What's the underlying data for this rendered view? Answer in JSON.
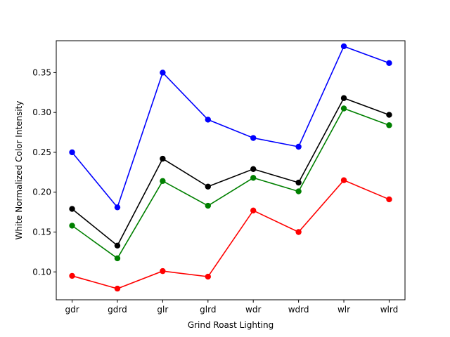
{
  "chart_data": {
    "type": "line",
    "title": "",
    "xlabel": "Grind Roast Lighting",
    "ylabel": "White Normalized Color Intensity",
    "categories": [
      "gdr",
      "gdrd",
      "glr",
      "glrd",
      "wdr",
      "wdrd",
      "wlr",
      "wlrd"
    ],
    "ylim": [
      0.065,
      0.39
    ],
    "yticks": [
      0.1,
      0.15,
      0.2,
      0.25,
      0.3,
      0.35
    ],
    "ytick_labels": [
      "0.10",
      "0.15",
      "0.20",
      "0.25",
      "0.30",
      "0.35"
    ],
    "grid": false,
    "legend": "none",
    "series": [
      {
        "color": "#0000ff",
        "values": [
          0.25,
          0.181,
          0.35,
          0.291,
          0.268,
          0.257,
          0.383,
          0.362
        ]
      },
      {
        "color": "#000000",
        "values": [
          0.179,
          0.133,
          0.242,
          0.207,
          0.229,
          0.212,
          0.318,
          0.297
        ]
      },
      {
        "color": "#008000",
        "values": [
          0.158,
          0.117,
          0.214,
          0.183,
          0.218,
          0.201,
          0.305,
          0.284
        ]
      },
      {
        "color": "#ff0000",
        "values": [
          0.095,
          0.079,
          0.101,
          0.094,
          0.177,
          0.15,
          0.215,
          0.191
        ]
      }
    ]
  }
}
